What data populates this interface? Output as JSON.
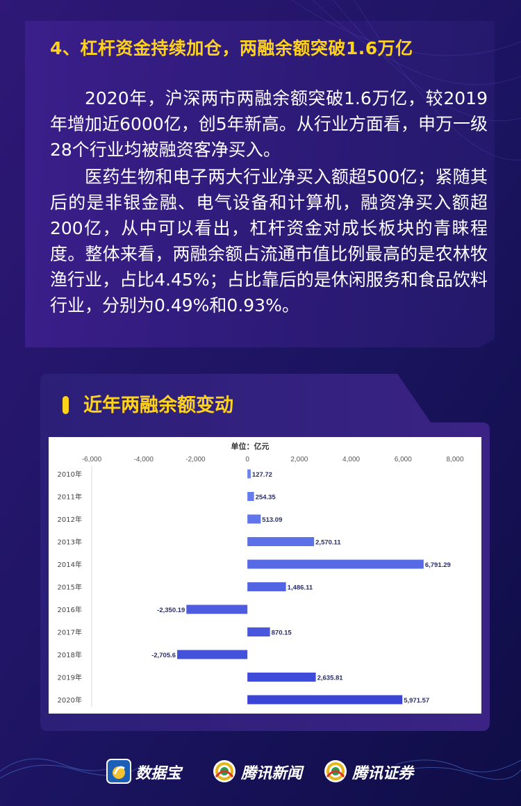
{
  "heading": "4、杠杆资金持续加仓，两融余额突破1.6万亿",
  "paragraphs": [
    "2020年，沪深两市两融余额突破1.6万亿，较2019年增加近6000亿，创5年新高。从行业方面看，申万一级28个行业均被融资客净买入。",
    "医药生物和电子两大行业净买入额超500亿；紧随其后的是非银金融、电气设备和计算机，融资净买入额超200亿，从中可以看出，杠杆资金对成长板块的青睐程度。整体来看，两融余额占流通市值比例最高的是农林牧渔行业，占比4.45%；占比靠后的是休闲服务和食品饮料行业，分别为0.49%和0.93%。"
  ],
  "panel_title": "近年两融余额变动",
  "chart_data": {
    "type": "bar",
    "orientation": "horizontal",
    "title": "",
    "unit_label": "单位：亿元",
    "categories": [
      "2010年",
      "2011年",
      "2012年",
      "2013年",
      "2014年",
      "2015年",
      "2016年",
      "2017年",
      "2018年",
      "2019年",
      "2020年"
    ],
    "values": [
      127.72,
      254.35,
      513.09,
      2570.11,
      6791.29,
      1486.11,
      -2350.19,
      870.15,
      -2705.6,
      2635.81,
      5971.57
    ],
    "value_labels": [
      "127.72",
      "254.35",
      "513.09",
      "2,570.11",
      "6,791.29",
      "1,486.11",
      "-2,350.19",
      "870.15",
      "-2,705.6",
      "2,635.81",
      "5,971.57"
    ],
    "xlim": [
      -6000,
      8000
    ],
    "x_ticks": [
      -6000,
      -4000,
      -2000,
      0,
      2000,
      4000,
      6000,
      8000
    ],
    "x_tick_labels": [
      "-6,000",
      "-4,000",
      "-2,000",
      "0",
      "2,000",
      "4,000",
      "6,000",
      "8,000"
    ],
    "x_axis_position": "top",
    "grid": false,
    "legend": "none",
    "bar_color_light": "#6b82ef",
    "bar_color_dark": "#3a45d6"
  },
  "footer": {
    "brands": [
      "数据宝",
      "腾讯新闻",
      "腾讯证券"
    ]
  },
  "colors": {
    "background": "#120f4a",
    "accent": "#ffd21c",
    "panel": "#2a1d70"
  }
}
